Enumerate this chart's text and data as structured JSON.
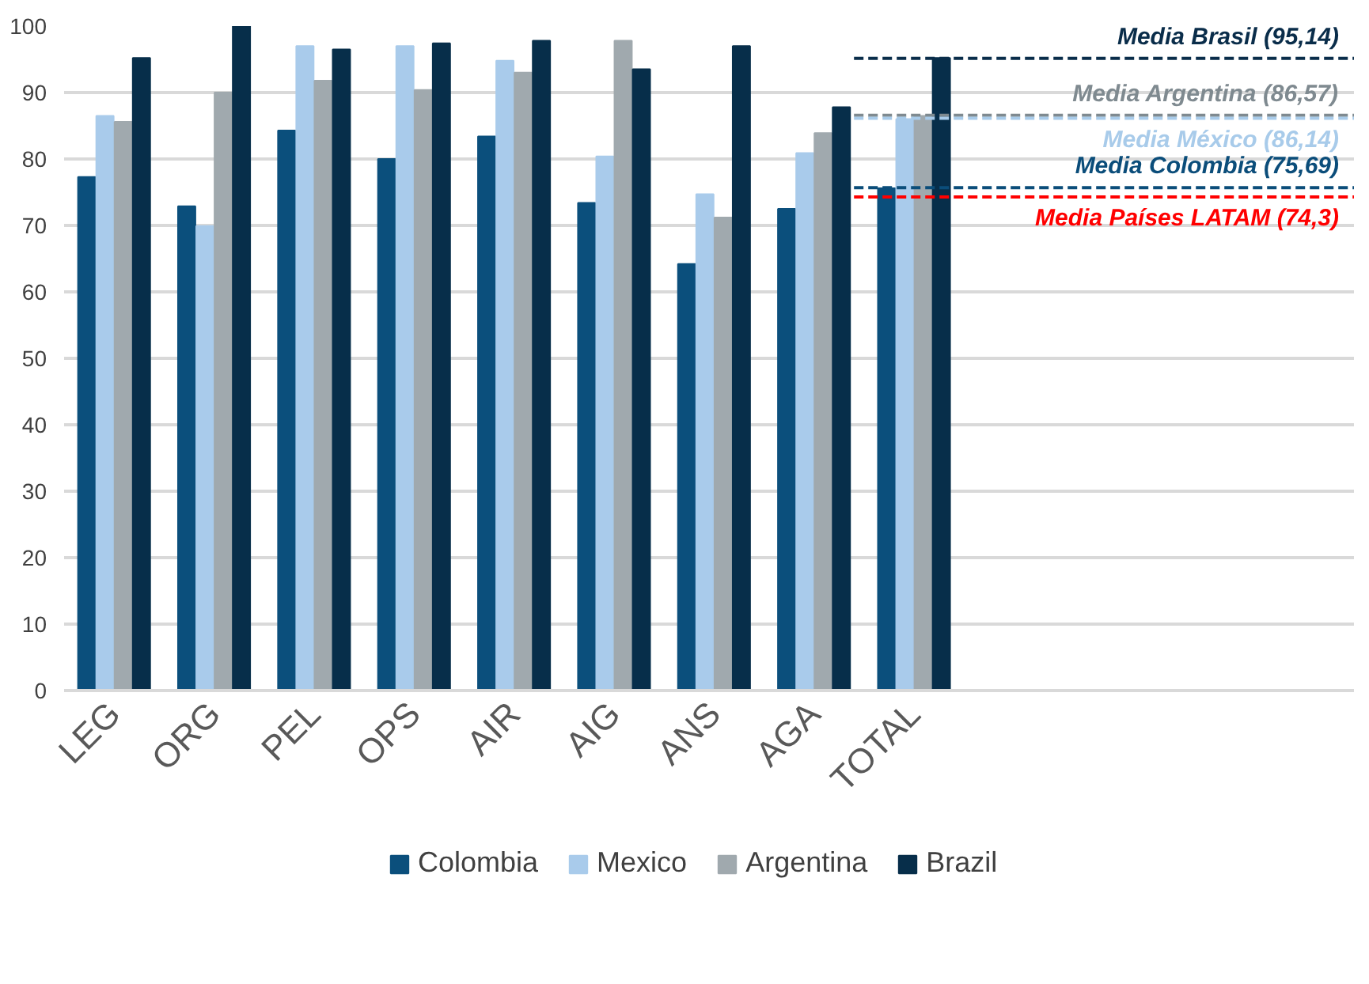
{
  "chart_data": {
    "type": "bar",
    "categories": [
      "LEG",
      "ORG",
      "PEL",
      "OPS",
      "AIR",
      "AIG",
      "ANS",
      "AGA",
      "TOTAL"
    ],
    "series": [
      {
        "name": "Colombia",
        "color": "#0b4f7c",
        "values": [
          77.3,
          72.9,
          84.3,
          80.0,
          83.4,
          73.4,
          64.2,
          72.5,
          75.6
        ]
      },
      {
        "name": "Mexico",
        "color": "#a9cbeb",
        "values": [
          86.5,
          69.9,
          97.0,
          97.0,
          94.8,
          80.4,
          74.7,
          80.9,
          86.0
        ]
      },
      {
        "name": "Argentina",
        "color": "#a0a9ae",
        "values": [
          85.6,
          90.0,
          91.8,
          90.4,
          93.0,
          97.8,
          71.2,
          83.9,
          86.5
        ]
      },
      {
        "name": "Brazil",
        "color": "#072e4a",
        "values": [
          95.2,
          100.0,
          96.5,
          97.4,
          97.8,
          93.5,
          97.0,
          87.8,
          95.2
        ]
      }
    ],
    "ylim": [
      0,
      100
    ],
    "yticks": [
      0,
      10,
      20,
      30,
      40,
      50,
      60,
      70,
      80,
      90,
      100
    ],
    "grid": "y",
    "legend": "bottom",
    "ref_lines": [
      {
        "axis": "y",
        "value": 95.14,
        "label": "Media Brasil (95,14)",
        "color": "#0a2d4a",
        "line_style": "dashed"
      },
      {
        "axis": "y",
        "value": 86.57,
        "label": "Media Argentina (86,57)",
        "color": "#7f8a90",
        "line_style": "dashed"
      },
      {
        "axis": "y",
        "value": 86.14,
        "label": "Media México (86,14)",
        "color": "#a8cbea",
        "line_style": "dashed"
      },
      {
        "axis": "y",
        "value": 75.69,
        "label": "Media Colombia (75,69)",
        "color": "#0b4d7a",
        "line_style": "dashed"
      },
      {
        "axis": "y",
        "value": 74.3,
        "label": "Media Países LATAM (74,3)",
        "color": "#ff0000",
        "line_style": "dashed"
      }
    ]
  }
}
